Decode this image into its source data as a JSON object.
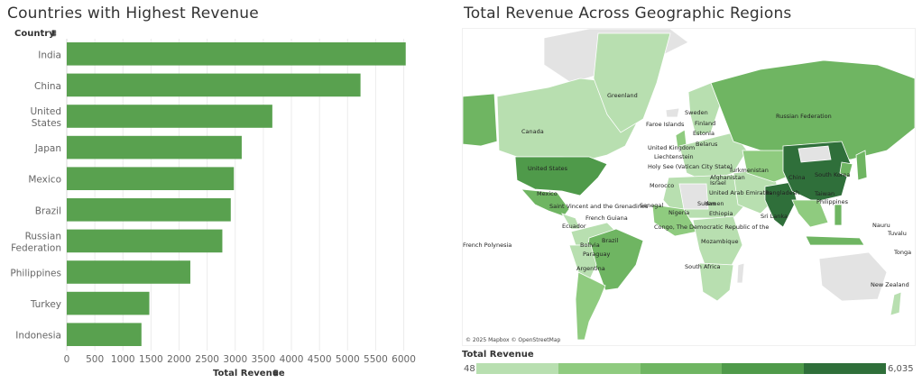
{
  "bar_chart": {
    "title": "Countries with Highest Revenue",
    "row_header": "Country",
    "xlabel": "Total Revenue",
    "bar_color": "#59a14f"
  },
  "map": {
    "title": "Total Revenue Across Geographic Regions",
    "attribution": "© 2025 Mapbox © OpenStreetMap",
    "legend": {
      "title": "Total Revenue",
      "min": "48",
      "max": "6,035",
      "colors": [
        "#b8dfb0",
        "#8fcb7f",
        "#6fb562",
        "#4f9a4a",
        "#2f6f3a"
      ]
    },
    "labels": [
      "Greenland",
      "Canada",
      "United States",
      "Mexico",
      "Saint Vincent and the Grenadines",
      "French Guiana",
      "Ecuador",
      "Brazil",
      "Bolivia",
      "Paraguay",
      "Argentina",
      "French Polynesia",
      "Faroe Islands",
      "Sweden",
      "Finland",
      "Estonia",
      "Belarus",
      "United Kingdom",
      "Liechtenstein",
      "Holy See (Vatican City State)",
      "Morocco",
      "Senegal",
      "Nigeria",
      "Israel",
      "Turkmenistan",
      "Afghanistan",
      "United Arab Emirates",
      "Sudan",
      "Yemen",
      "Ethiopia",
      "Congo, The Democratic Republic of the",
      "Mozambique",
      "South Africa",
      "Russian Federation",
      "China",
      "South Korea",
      "Bangladesh",
      "Taiwan",
      "Philippines",
      "Sri Lanka",
      "Nauru",
      "Tuvalu",
      "Tonga",
      "New Zealand"
    ]
  },
  "chart_data": [
    {
      "type": "bar",
      "orientation": "horizontal",
      "title": "Countries with Highest Revenue",
      "xlabel": "Total Revenue",
      "ylabel": "Country",
      "categories": [
        "India",
        "China",
        "United States",
        "Japan",
        "Mexico",
        "Brazil",
        "Russian Federation",
        "Philippines",
        "Turkey",
        "Indonesia"
      ],
      "values": [
        6035,
        5230,
        3660,
        3115,
        2975,
        2920,
        2770,
        2200,
        1470,
        1330
      ],
      "xlim": [
        0,
        6200
      ],
      "xticks": [
        0,
        500,
        1000,
        1500,
        2000,
        2500,
        3000,
        3500,
        4000,
        4500,
        5000,
        5500,
        6000
      ],
      "grid": "vertical"
    }
  ]
}
